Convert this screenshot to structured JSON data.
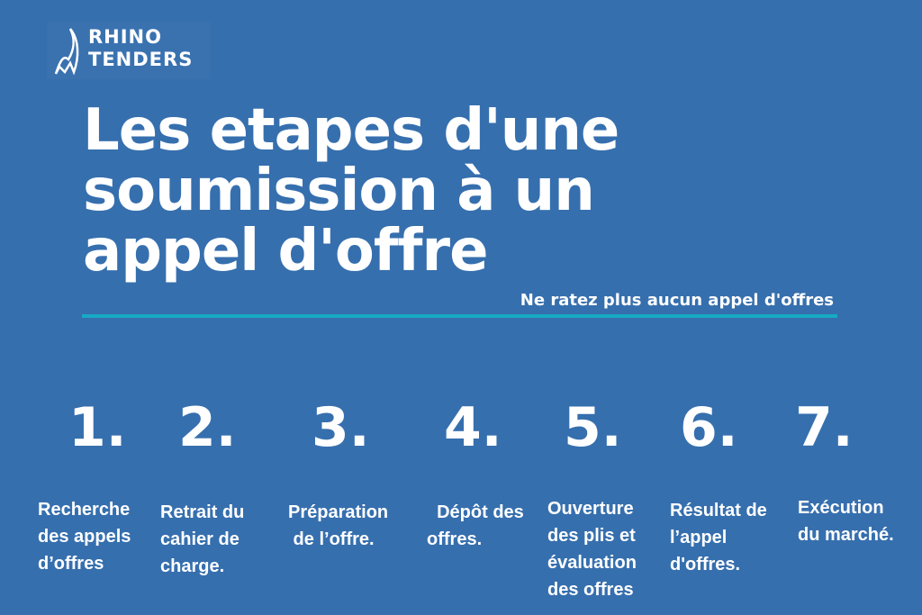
{
  "logo": {
    "line1": "RHINO",
    "line2": "TENDERS",
    "icon": "rhino-horn-icon"
  },
  "title": [
    "Les etapes d'une",
    "soumission à un",
    "appel d'offre"
  ],
  "subtitle": "Ne ratez plus aucun appel d'offres",
  "colors": {
    "background": "#366fae",
    "rule": "#17a9c4",
    "text": "#ffffff"
  },
  "steps": [
    {
      "number": "1.",
      "lines": [
        "Recherche",
        "des appels",
        "d’offres"
      ]
    },
    {
      "number": "2.",
      "lines": [
        "Retrait du",
        "cahier de",
        "charge."
      ]
    },
    {
      "number": "3.",
      "lines": [
        "Préparation",
        " de l’offre."
      ]
    },
    {
      "number": "4.",
      "lines": [
        "  Dépôt des",
        "offres."
      ]
    },
    {
      "number": "5.",
      "lines": [
        "Ouverture",
        "des plis et",
        "évaluation",
        "des offres"
      ]
    },
    {
      "number": "6.",
      "lines": [
        "Résultat de",
        "l’appel",
        "d'offres."
      ]
    },
    {
      "number": "7.",
      "lines": [
        "Exécution",
        "du marché."
      ]
    }
  ]
}
